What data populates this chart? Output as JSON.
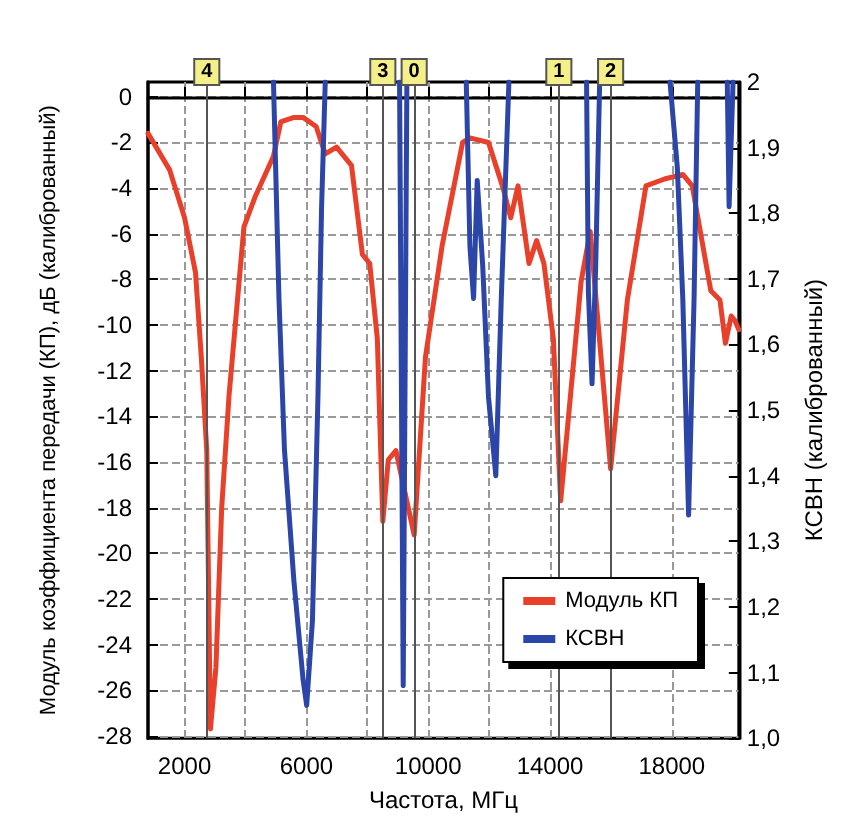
{
  "chart_data": {
    "type": "line",
    "xlabel": "Частота, МГц",
    "ylabel": "Модуль коэффициента передачи (КП), дБ (калиброванный)",
    "y2label": "КСВН (калиброванный)",
    "xlim": [
      800,
      20200
    ],
    "xticks": [
      2000,
      {
        "value": 4000,
        "label": null
      },
      6000,
      {
        "value": 8000,
        "label": null
      },
      10000,
      {
        "value": 12000,
        "label": null
      },
      14000,
      {
        "value": 16000,
        "label": null
      },
      18000
    ],
    "ylim": [
      -28.1,
      0.65
    ],
    "yticks": [
      0,
      -2,
      -4,
      -6,
      -8,
      -10,
      -12,
      -14,
      -16,
      -18,
      -20,
      -22,
      -24,
      -26,
      -28
    ],
    "y2lim": [
      1,
      2
    ],
    "y2ticks": [
      {
        "value": 1,
        "label": "1,0"
      },
      {
        "value": 1.1,
        "label": "1,1"
      },
      {
        "value": 1.2,
        "label": "1,2"
      },
      {
        "value": 1.3,
        "label": "1,3"
      },
      {
        "value": 1.4,
        "label": "1,4"
      },
      {
        "value": 1.5,
        "label": "1,5"
      },
      {
        "value": 1.6,
        "label": "1,6"
      },
      {
        "value": 1.7,
        "label": "1,7"
      },
      {
        "value": 1.8,
        "label": "1,8"
      },
      {
        "value": 1.9,
        "label": "1,9"
      },
      2
    ],
    "grid": true,
    "legend": "bottom right",
    "marker": "none",
    "line_style": "solid",
    "series": [
      {
        "name": "Модуль КП",
        "color": "#e8402a",
        "x": [
          800,
          1510,
          2000,
          2360,
          2550,
          2730,
          2850,
          3030,
          3220,
          3460,
          3950,
          4310,
          4920,
          5160,
          5590,
          5890,
          6320,
          6620,
          6990,
          7480,
          7840,
          8080,
          8330,
          8510,
          8690,
          8940,
          9540,
          9910,
          10460,
          11130,
          11370,
          11980,
          12460,
          12710,
          12950,
          13310,
          13560,
          13800,
          14110,
          14350,
          15020,
          15320,
          15990,
          16540,
          17150,
          17760,
          18360,
          18670,
          19280,
          19580,
          19760,
          19950,
          20070,
          20200
        ],
        "values": [
          -1.6,
          -3.2,
          -5.3,
          -7.7,
          -11.4,
          -15.5,
          -27.7,
          -25.0,
          -18.0,
          -13.1,
          -5.7,
          -4.4,
          -2.6,
          -1.1,
          -0.9,
          -0.9,
          -1.3,
          -2.5,
          -2.2,
          -3.0,
          -6.9,
          -7.3,
          -10.6,
          -18.6,
          -15.9,
          -15.5,
          -19.2,
          -11.4,
          -6.5,
          -2.0,
          -1.8,
          -2.0,
          -4.0,
          -5.3,
          -3.9,
          -7.3,
          -6.3,
          -7.3,
          -10.6,
          -17.7,
          -8.1,
          -5.9,
          -16.3,
          -8.9,
          -3.9,
          -3.6,
          -3.4,
          -3.9,
          -8.5,
          -8.9,
          -10.8,
          -9.6,
          -9.8,
          -10.2
        ]
      },
      {
        "name": "КСВН",
        "color": "#2b45a8",
        "axis": "y2",
        "x": [
          4920,
          5100,
          5280,
          5590,
          5890,
          6010,
          6200,
          6380,
          6500,
          6620,
          7500,
          9060,
          9180,
          9300,
          10000,
          11250,
          11370,
          11490,
          11610,
          11790,
          11980,
          12220,
          12400,
          12650,
          14000,
          15200,
          15260,
          15380,
          15500,
          15630,
          17000,
          17940,
          18180,
          18360,
          18550,
          18730,
          18850,
          19300,
          19820,
          19880,
          20010
        ],
        "values": [
          2,
          1.67,
          1.44,
          1.24,
          1.09,
          1.05,
          1.18,
          1.52,
          1.81,
          2,
          null,
          2,
          1.08,
          2,
          null,
          2,
          1.75,
          1.67,
          1.85,
          1.72,
          1.52,
          1.4,
          1.67,
          2,
          null,
          2,
          1.68,
          1.54,
          1.72,
          2,
          null,
          2,
          1.87,
          1.67,
          1.34,
          1.67,
          2,
          null,
          2,
          1.81,
          2
        ]
      }
    ],
    "ref_lines": [
      {
        "axis": "x",
        "value": 2730,
        "color": "#555555"
      },
      {
        "axis": "x",
        "value": 8510,
        "color": "#555555"
      },
      {
        "axis": "x",
        "value": 9540,
        "color": "#555555"
      },
      {
        "axis": "x",
        "value": 14290,
        "color": "#555555"
      },
      {
        "axis": "x",
        "value": 15990,
        "color": "#555555"
      }
    ],
    "annotations": [
      {
        "text": "4",
        "x": 2730
      },
      {
        "text": "3",
        "x": 8510
      },
      {
        "text": "0",
        "x": 9540
      },
      {
        "text": "1",
        "x": 14290
      },
      {
        "text": "2",
        "x": 15990
      }
    ]
  }
}
